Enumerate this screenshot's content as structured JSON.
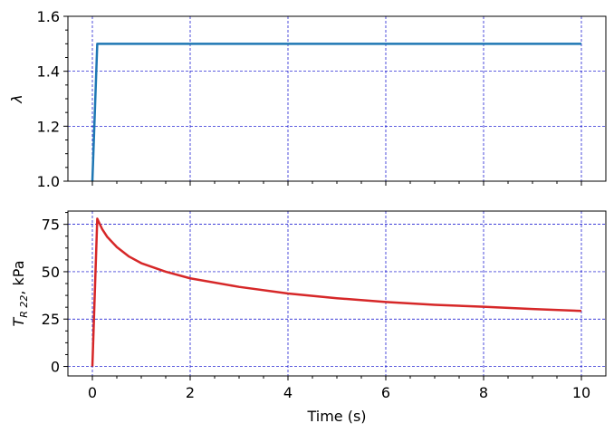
{
  "chart_data": [
    {
      "type": "line",
      "xlabel": "",
      "ylabel": "λ",
      "xlim": [
        -0.5,
        10.5
      ],
      "ylim": [
        1.0,
        1.6
      ],
      "xticks": [
        0,
        2,
        4,
        6,
        8,
        10
      ],
      "yticks": [
        1.0,
        1.2,
        1.4,
        1.6
      ],
      "ytick_labels": [
        "1.0",
        "1.2",
        "1.4",
        "1.6"
      ],
      "grid": true,
      "series": [
        {
          "color": "#1f77b4",
          "x": [
            0,
            0.1,
            10
          ],
          "y": [
            1.0,
            1.5,
            1.5
          ]
        }
      ]
    },
    {
      "type": "line",
      "xlabel": "Time (s)",
      "ylabel": "T_R22, kPa",
      "ylabel_parts": {
        "main": "T",
        "sub": "R 22",
        "unit": ",  kPa"
      },
      "xlim": [
        -0.5,
        10.5
      ],
      "ylim": [
        -5,
        82
      ],
      "xticks": [
        0,
        2,
        4,
        6,
        8,
        10
      ],
      "xtick_labels": [
        "0",
        "2",
        "4",
        "6",
        "8",
        "10"
      ],
      "yticks": [
        0,
        25,
        50,
        75
      ],
      "ytick_labels": [
        "0",
        "25",
        "50",
        "75"
      ],
      "grid": true,
      "series": [
        {
          "color": "#d62728",
          "x": [
            0,
            0.1,
            0.2,
            0.3,
            0.5,
            0.75,
            1.0,
            1.5,
            2.0,
            3.0,
            4.0,
            5.0,
            6.0,
            7.0,
            8.0,
            9.0,
            10.0
          ],
          "y": [
            0,
            78,
            72.5,
            68.5,
            63,
            58,
            54.5,
            50,
            46.5,
            42,
            38.5,
            36,
            34,
            32.5,
            31.5,
            30.3,
            29.3
          ]
        }
      ]
    }
  ]
}
